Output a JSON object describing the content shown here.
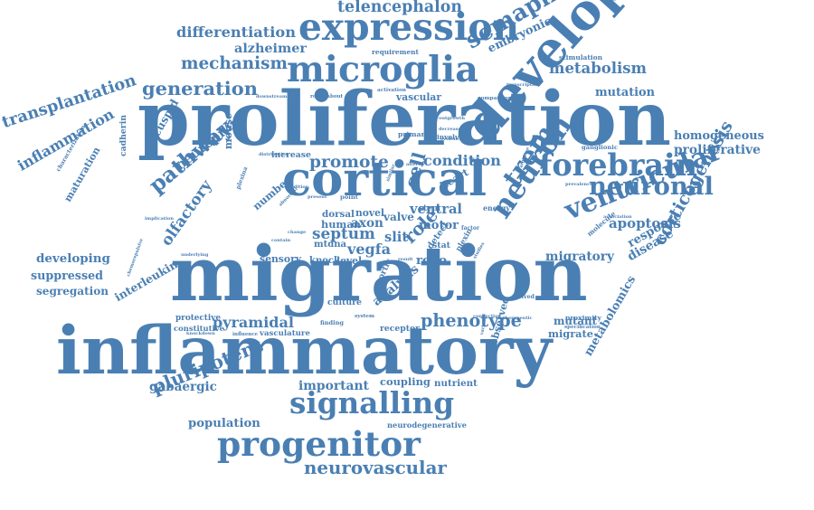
{
  "cloud": {
    "color": "#4a7fb3",
    "words": [
      {
        "text": "proliferation",
        "weight": 1.0
      },
      {
        "text": "migration",
        "weight": 1.0
      },
      {
        "text": "inflammatory",
        "weight": 0.95
      },
      {
        "text": "development",
        "weight": 1.0
      },
      {
        "text": "cortical",
        "weight": 0.7
      },
      {
        "text": "expression",
        "weight": 0.65
      },
      {
        "text": "microglia",
        "weight": 0.55
      },
      {
        "text": "signalling",
        "weight": 0.55
      },
      {
        "text": "progenitor",
        "weight": 0.55
      },
      {
        "text": "cadherin",
        "weight": 0.5
      },
      {
        "text": "mouse",
        "weight": 0.5
      },
      {
        "text": "neuron",
        "weight": 0.45
      },
      {
        "text": "trem",
        "weight": 0.45
      },
      {
        "text": "forebrain",
        "weight": 0.42
      },
      {
        "text": "ventricular",
        "weight": 0.42
      },
      {
        "text": "cell",
        "weight": 0.45
      },
      {
        "text": "semaphorin",
        "weight": 0.4
      },
      {
        "text": "corticogenesis",
        "weight": 0.38
      },
      {
        "text": "neuronal",
        "weight": 0.36
      },
      {
        "text": "pathway",
        "weight": 0.36
      },
      {
        "text": "pluripotent",
        "weight": 0.32
      },
      {
        "text": "generation",
        "weight": 0.3
      },
      {
        "text": "telencephalon",
        "weight": 0.26
      },
      {
        "text": "differentiation",
        "weight": 0.24
      },
      {
        "text": "transplantation",
        "weight": 0.26
      },
      {
        "text": "mechanism",
        "weight": 0.22
      },
      {
        "text": "metabolism",
        "weight": 0.22
      },
      {
        "text": "neurovascular",
        "weight": 0.22
      },
      {
        "text": "phenotype",
        "weight": 0.24
      },
      {
        "text": "neuropilin",
        "weight": 0.22
      },
      {
        "text": "promote",
        "weight": 0.24
      },
      {
        "text": "condition",
        "weight": 0.22
      },
      {
        "text": "septum",
        "weight": 0.24
      },
      {
        "text": "pyramidal",
        "weight": 0.22
      },
      {
        "text": "olfactory",
        "weight": 0.22
      },
      {
        "text": "inflammation",
        "weight": 0.2
      },
      {
        "text": "apoptosis",
        "weight": 0.2
      },
      {
        "text": "metabolomics",
        "weight": 0.2
      },
      {
        "text": "alzheimer",
        "weight": 0.16
      },
      {
        "text": "embryonic",
        "weight": 0.16
      },
      {
        "text": "mutation",
        "weight": 0.16
      },
      {
        "text": "homogeneous",
        "weight": 0.15
      },
      {
        "text": "proliferative",
        "weight": 0.15
      },
      {
        "text": "bicuspid",
        "weight": 0.18
      },
      {
        "text": "maturation",
        "weight": 0.18
      },
      {
        "text": "characterization",
        "weight": 0.14
      },
      {
        "text": "developing",
        "weight": 0.18
      },
      {
        "text": "suppressed",
        "weight": 0.17
      },
      {
        "text": "segregation",
        "weight": 0.16
      },
      {
        "text": "interleukin",
        "weight": 0.17
      },
      {
        "text": "gabaergic",
        "weight": 0.17
      },
      {
        "text": "population",
        "weight": 0.16
      },
      {
        "text": "response",
        "weight": 0.17
      },
      {
        "text": "disease",
        "weight": 0.16
      },
      {
        "text": "migratory",
        "weight": 0.18
      },
      {
        "text": "mutant",
        "weight": 0.16
      },
      {
        "text": "migrate",
        "weight": 0.15
      },
      {
        "text": "proximity",
        "weight": 0.12
      },
      {
        "text": "specification",
        "weight": 0.1
      },
      {
        "text": "vegfa",
        "weight": 0.2
      },
      {
        "text": "mtdna",
        "weight": 0.17
      },
      {
        "text": "human",
        "weight": 0.17
      },
      {
        "text": "axon",
        "weight": 0.17
      },
      {
        "text": "ventral",
        "weight": 0.18
      },
      {
        "text": "motor",
        "weight": 0.17
      },
      {
        "text": "valve",
        "weight": 0.16
      },
      {
        "text": "stem",
        "weight": 0.14
      },
      {
        "text": "role",
        "weight": 0.2
      },
      {
        "text": "detect",
        "weight": 0.16
      },
      {
        "text": "robo",
        "weight": 0.16
      },
      {
        "text": "slit",
        "weight": 0.16
      },
      {
        "text": "plexin",
        "weight": 0.16
      },
      {
        "text": "analysis",
        "weight": 0.18
      },
      {
        "text": "aortic",
        "weight": 0.15
      },
      {
        "text": "heart",
        "weight": 0.14
      },
      {
        "text": "arginase",
        "weight": 0.14
      },
      {
        "text": "vascular",
        "weight": 0.14
      },
      {
        "text": "observed",
        "weight": 0.13
      },
      {
        "text": "culture",
        "weight": 0.14
      },
      {
        "text": "vasculature",
        "weight": 0.13
      },
      {
        "text": "influence",
        "weight": 0.1
      },
      {
        "text": "constitutive",
        "weight": 0.12
      },
      {
        "text": "protective",
        "weight": 0.12
      },
      {
        "text": "receptor",
        "weight": 0.14
      },
      {
        "text": "finding",
        "weight": 0.1
      },
      {
        "text": "system",
        "weight": 0.1
      },
      {
        "text": "important",
        "weight": 0.14
      },
      {
        "text": "coupling",
        "weight": 0.15
      },
      {
        "text": "nutrient",
        "weight": 0.13
      },
      {
        "text": "neurodegenerative",
        "weight": 0.1
      },
      {
        "text": "knock",
        "weight": 0.12
      },
      {
        "text": "level",
        "weight": 0.12
      },
      {
        "text": "sensory",
        "weight": 0.12
      },
      {
        "text": "number",
        "weight": 0.12
      },
      {
        "text": "dorsal",
        "weight": 0.14
      },
      {
        "text": "novel",
        "weight": 0.14
      },
      {
        "text": "increase",
        "weight": 0.12
      },
      {
        "text": "primary",
        "weight": 0.11
      },
      {
        "text": "involved",
        "weight": 0.11
      },
      {
        "text": "energy",
        "weight": 0.12
      },
      {
        "text": "factor",
        "weight": 0.11
      },
      {
        "text": "stat",
        "weight": 0.11
      },
      {
        "text": "requirement",
        "weight": 0.1
      },
      {
        "text": "stimulation",
        "weight": 0.1
      },
      {
        "text": "ganglionic",
        "weight": 0.1
      },
      {
        "text": "molecule",
        "weight": 0.09
      },
      {
        "text": "plexina",
        "weight": 0.11
      },
      {
        "text": "studies",
        "weight": 0.1
      },
      {
        "text": "variant",
        "weight": 0.1
      },
      {
        "text": "derived",
        "weight": 0.09
      },
      {
        "text": "therapeutic",
        "weight": 0.08
      },
      {
        "text": "connection",
        "weight": 0.08
      },
      {
        "text": "result",
        "weight": 0.08
      },
      {
        "text": "addition",
        "weight": 0.08
      },
      {
        "text": "present",
        "weight": 0.09
      },
      {
        "text": "point",
        "weight": 0.09
      },
      {
        "text": "similar",
        "weight": 0.08
      },
      {
        "text": "transcription",
        "weight": 0.08
      },
      {
        "text": "comparison",
        "weight": 0.08
      },
      {
        "text": "activation",
        "weight": 0.08
      },
      {
        "text": "roundabout",
        "weight": 0.08
      },
      {
        "text": "downstream",
        "weight": 0.08
      },
      {
        "text": "distribution",
        "weight": 0.08
      },
      {
        "text": "outgrowth",
        "weight": 0.07
      },
      {
        "text": "decrease",
        "weight": 0.07
      },
      {
        "text": "evidence",
        "weight": 0.07
      },
      {
        "text": "altered",
        "weight": 0.07
      },
      {
        "text": "change",
        "weight": 0.07
      },
      {
        "text": "contain",
        "weight": 0.07
      },
      {
        "text": "abnormal",
        "weight": 0.07
      },
      {
        "text": "knockdown",
        "weight": 0.07
      },
      {
        "text": "implication",
        "weight": 0.07
      },
      {
        "text": "underlying",
        "weight": 0.07
      },
      {
        "text": "chemorepulsive",
        "weight": 0.07
      },
      {
        "text": "association",
        "weight": 0.07
      },
      {
        "text": "prevalence",
        "weight": 0.07
      }
    ]
  }
}
